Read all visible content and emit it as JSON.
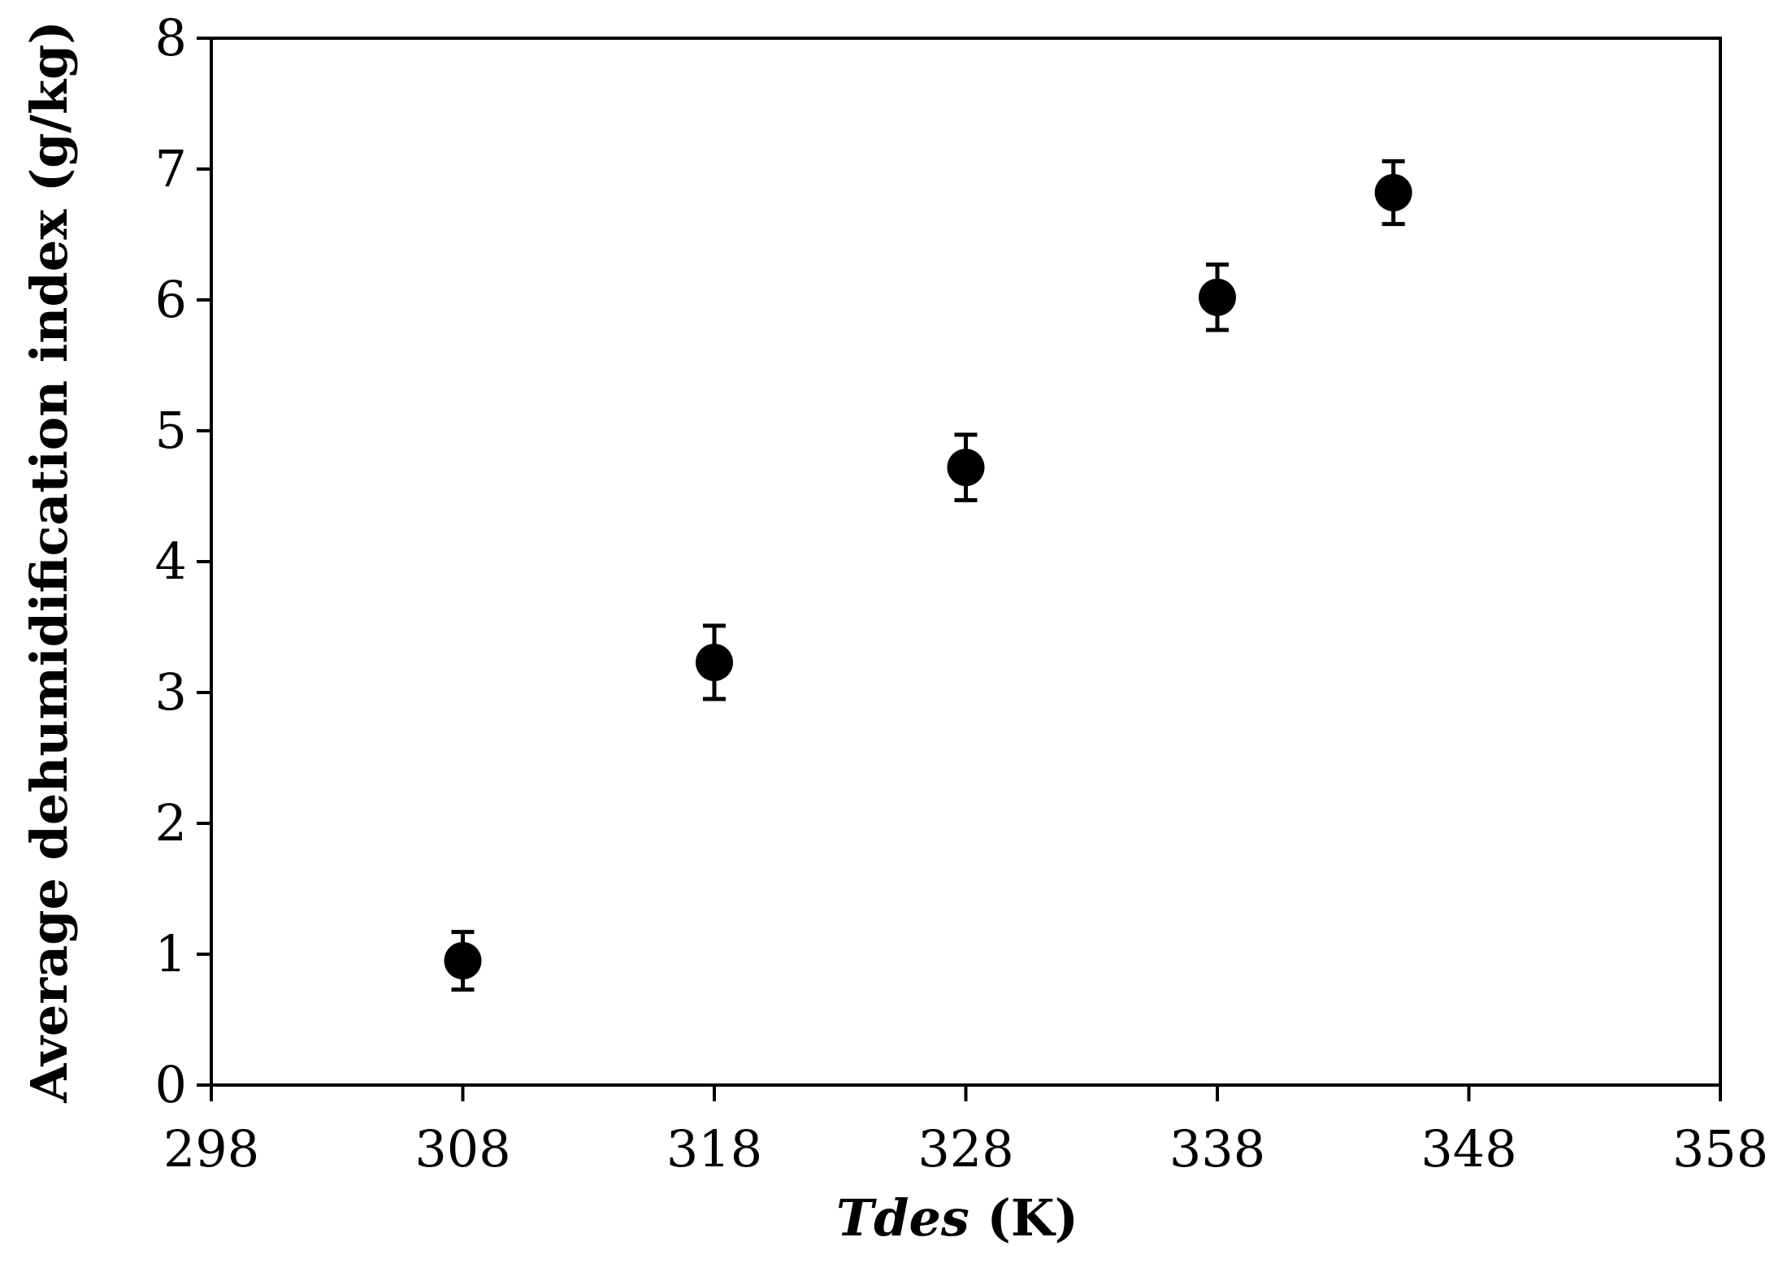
{
  "chart_data": {
    "type": "scatter",
    "title": "",
    "xlabel_italic": "Tdes",
    "xlabel_unit": "(K)",
    "ylabel": "Average dehumidification index (g/kg)",
    "xlim": [
      298,
      358
    ],
    "ylim": [
      0,
      8
    ],
    "x_ticks": [
      298,
      308,
      318,
      328,
      338,
      348,
      358
    ],
    "y_ticks": [
      0,
      1,
      2,
      3,
      4,
      5,
      6,
      7,
      8
    ],
    "grid": false,
    "legend": "none",
    "marker_color": "#000000",
    "series": [
      {
        "x": [
          308,
          318,
          328,
          338,
          345
        ],
        "y": [
          0.95,
          3.23,
          4.72,
          6.02,
          6.82
        ],
        "error": [
          0.22,
          0.28,
          0.25,
          0.25,
          0.24
        ]
      }
    ]
  }
}
